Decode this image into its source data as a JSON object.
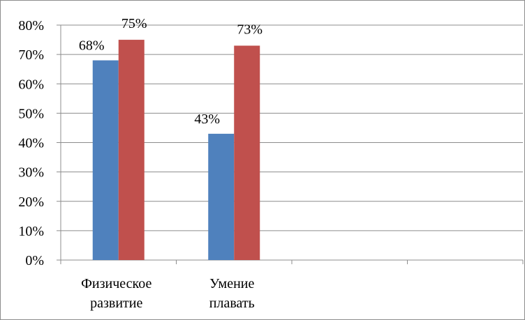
{
  "chart_data": {
    "type": "bar",
    "categories": [
      [
        "Физическое",
        "развитие"
      ],
      [
        "Умение",
        "плавать"
      ],
      [
        ""
      ],
      [
        ""
      ]
    ],
    "series": [
      {
        "values": [
          68,
          43,
          null,
          null
        ],
        "color": "#4f81bd"
      },
      {
        "values": [
          75,
          73,
          null,
          null
        ],
        "color": "#c0504d"
      }
    ],
    "data_labels": [
      [
        "68%",
        "43%",
        null,
        null
      ],
      [
        "75%",
        "73%",
        null,
        null
      ]
    ],
    "y_ticks": [
      {
        "value": 0,
        "label": "0%"
      },
      {
        "value": 10,
        "label": "10%"
      },
      {
        "value": 20,
        "label": "20%"
      },
      {
        "value": 30,
        "label": "30%"
      },
      {
        "value": 40,
        "label": "40%"
      },
      {
        "value": 50,
        "label": "50%"
      },
      {
        "value": 60,
        "label": "60%"
      },
      {
        "value": 70,
        "label": "70%"
      },
      {
        "value": 80,
        "label": "80%"
      }
    ],
    "ylim": [
      0,
      80
    ],
    "grid": true,
    "legend": "none"
  }
}
